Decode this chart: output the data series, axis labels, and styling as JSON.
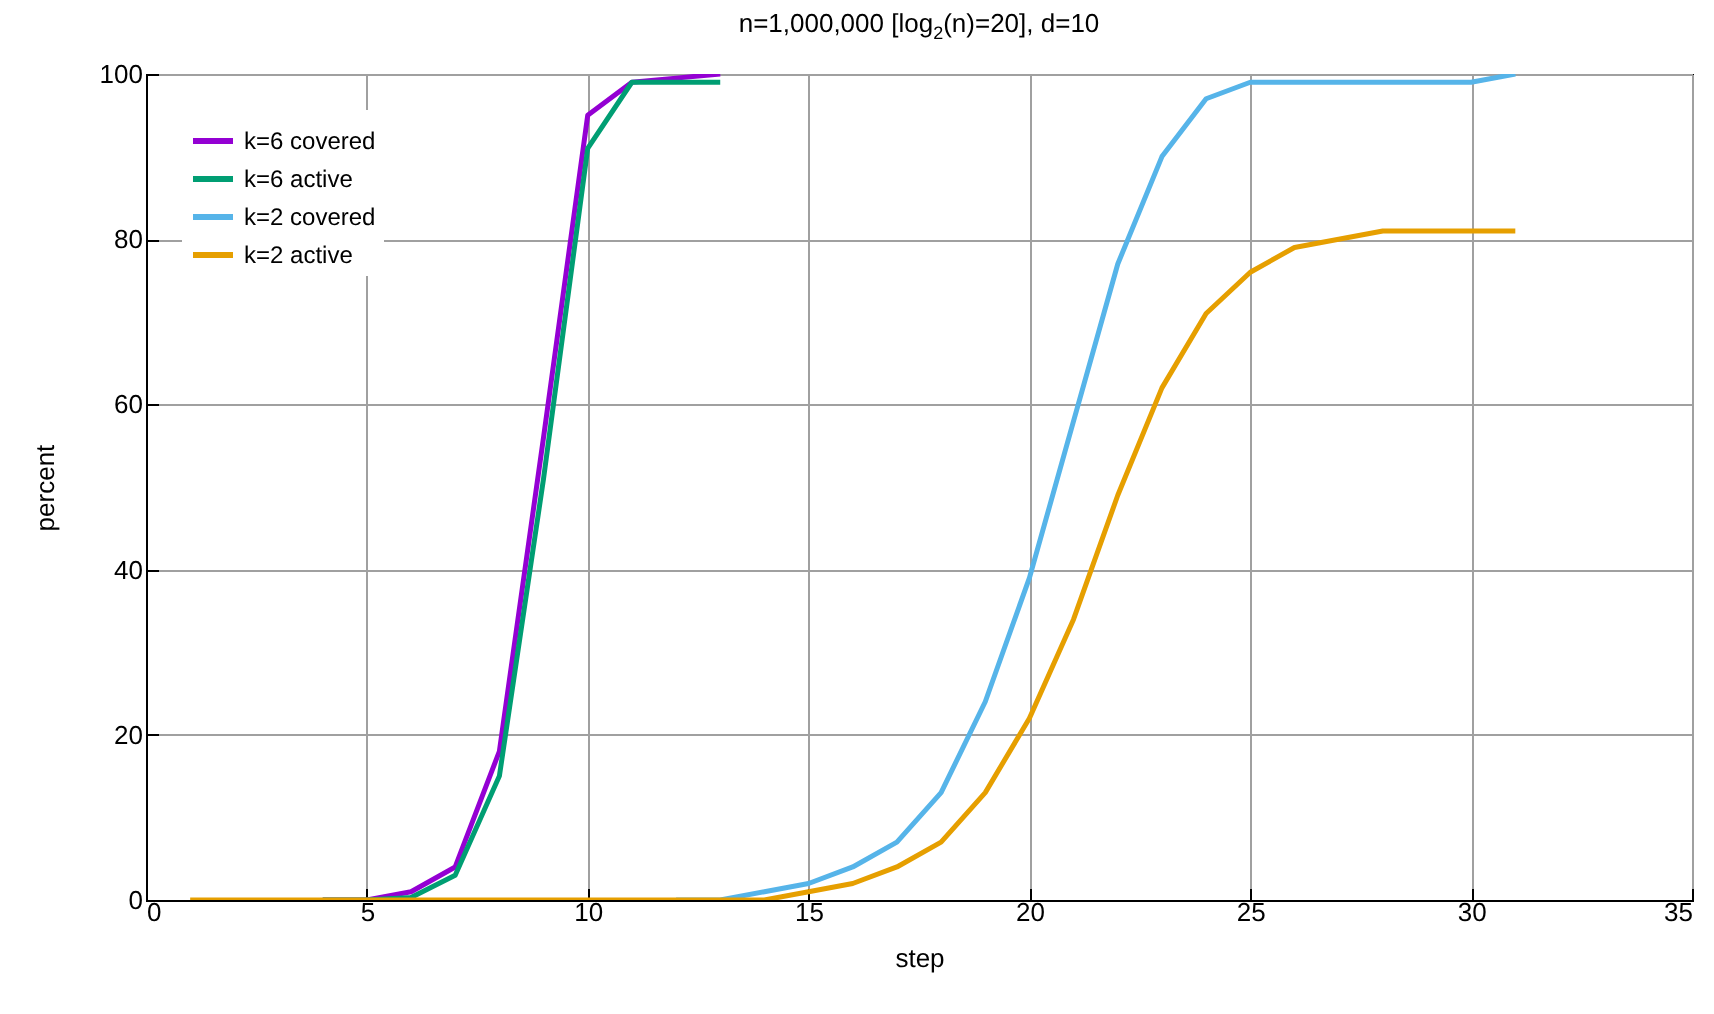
{
  "chart_data": {
    "type": "line",
    "title": "n=1,000,000 [log$_{2}$(n)=20],  d=10",
    "xlabel": "step",
    "ylabel": "percent",
    "xlim": [
      0,
      35
    ],
    "xticks": [
      0,
      5,
      10,
      15,
      20,
      25,
      30,
      35
    ],
    "ylim": [
      0,
      100
    ],
    "yticks": [
      0,
      20,
      40,
      60,
      80,
      100
    ],
    "grid": true,
    "legend": "top left",
    "marker": "none",
    "line_style": "solid",
    "series": [
      {
        "name": "k=6 covered",
        "color": "#9400d3",
        "x": [
          4,
          5,
          6,
          7,
          8,
          9,
          10,
          11,
          12,
          13
        ],
        "values": [
          0,
          0,
          1,
          4,
          18,
          56,
          95,
          99,
          99.5,
          100
        ]
      },
      {
        "name": "k=6 active",
        "color": "#009e73",
        "x": [
          4,
          5,
          6,
          7,
          8,
          9,
          10,
          11,
          12,
          13
        ],
        "values": [
          0,
          0,
          0.3,
          3,
          15,
          51,
          91,
          99,
          99,
          99
        ]
      },
      {
        "name": "k=2 covered",
        "color": "#56b4e9",
        "x": [
          12,
          13,
          14,
          15,
          16,
          17,
          18,
          19,
          20,
          21,
          22,
          23,
          24,
          25,
          26,
          27,
          28,
          29,
          30,
          31
        ],
        "values": [
          0,
          0,
          1,
          2,
          4,
          7,
          13,
          24,
          39,
          58,
          77,
          90,
          97,
          99,
          99,
          99,
          99,
          99,
          99,
          100
        ]
      },
      {
        "name": "k=2 active",
        "color": "#e69f00",
        "x": [
          1,
          2,
          3,
          4,
          5,
          6,
          7,
          8,
          9,
          10,
          11,
          12,
          13,
          14,
          15,
          16,
          17,
          18,
          19,
          20,
          21,
          22,
          23,
          24,
          25,
          26,
          27,
          28,
          29,
          30,
          31
        ],
        "values": [
          0,
          0,
          0,
          0,
          0,
          0,
          0,
          0,
          0,
          0,
          0,
          0,
          0,
          0,
          1,
          2,
          4,
          7,
          13,
          22,
          34,
          49,
          62,
          71,
          76,
          79,
          80,
          81,
          81,
          81,
          81
        ]
      }
    ]
  }
}
